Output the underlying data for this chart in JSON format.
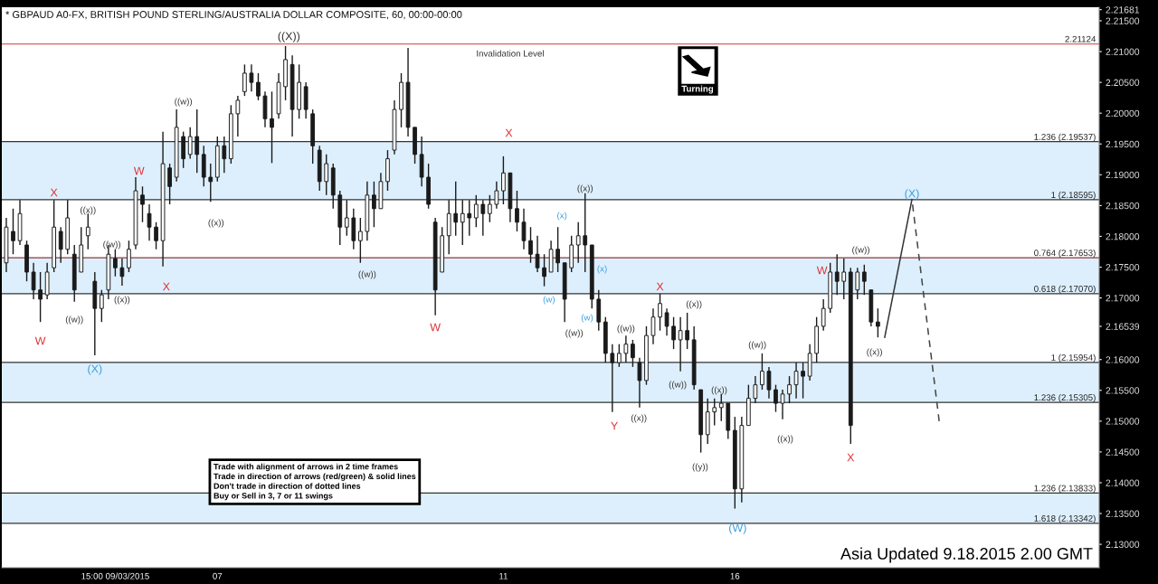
{
  "chart_data": {
    "type": "candlestick",
    "title": "* GBPAUD A0-FX, BRITISH POUND STERLING/AUSTRALIA DOLLAR COMPOSITE, 60, 00:00-00:00",
    "color": "#1a1a1a",
    "categories": [
      null,
      null,
      null,
      null,
      null,
      null,
      null,
      null,
      null,
      null,
      null,
      null,
      null,
      null,
      null,
      null,
      "15:00 09/03/2015",
      null,
      null,
      null,
      null,
      null,
      null,
      null,
      null,
      null,
      null,
      null,
      null,
      null,
      null,
      "07",
      null,
      null,
      null,
      null,
      null,
      null,
      null,
      null,
      null,
      null,
      null,
      null,
      null,
      null,
      null,
      null,
      null,
      null,
      null,
      null,
      null,
      null,
      null,
      null,
      null,
      null,
      null,
      null,
      null,
      null,
      null,
      null,
      null,
      null,
      null,
      null,
      null,
      null,
      null,
      null,
      null,
      "11",
      null,
      null,
      null,
      null,
      null,
      null,
      null,
      null,
      null,
      null,
      null,
      null,
      null,
      null,
      null,
      null,
      null,
      null,
      null,
      null,
      null,
      null,
      null,
      null,
      null,
      null,
      null,
      null,
      null,
      null,
      null,
      null,
      null,
      "16",
      null,
      null,
      null,
      null,
      null,
      null,
      null,
      null,
      null,
      null,
      null,
      null,
      null,
      null,
      null,
      null,
      null,
      null,
      null,
      null,
      null,
      null,
      null,
      null,
      null,
      null,
      null,
      null,
      null,
      null,
      null,
      null,
      null,
      null,
      null,
      null,
      null,
      null,
      null,
      null,
      null,
      null,
      null,
      null,
      null,
      null,
      null,
      null,
      null,
      null,
      null,
      null,
      null
    ],
    "ohlc": [
      [
        2.1757,
        2.183,
        2.1742,
        2.1815
      ],
      [
        2.1808,
        2.1845,
        2.1771,
        2.1793
      ],
      [
        2.1793,
        2.1859,
        2.1786,
        2.1837
      ],
      [
        2.1786,
        2.1793,
        2.1727,
        2.1742
      ],
      [
        2.1742,
        2.1757,
        2.1698,
        2.1713
      ],
      [
        2.1713,
        2.1742,
        2.1661,
        2.1698
      ],
      [
        2.1705,
        2.1757,
        2.1698,
        2.1742
      ],
      [
        2.1749,
        2.1859,
        2.1742,
        2.1815
      ],
      [
        2.1808,
        2.1815,
        2.1757,
        2.1779
      ],
      [
        2.1779,
        2.1859,
        2.1771,
        2.183
      ],
      [
        2.1771,
        2.1786,
        2.1694,
        2.1713
      ],
      [
        2.1742,
        2.1815,
        2.1742,
        2.1786
      ],
      [
        2.1801,
        2.1837,
        2.1779,
        2.1815
      ],
      [
        2.1727,
        2.1742,
        2.1607,
        2.1683
      ],
      [
        2.1683,
        2.1713,
        2.1661,
        2.1705
      ],
      [
        2.1713,
        2.1786,
        2.1698,
        2.1771
      ],
      [
        2.1764,
        2.1779,
        2.1735,
        2.1749
      ],
      [
        2.1749,
        2.1764,
        2.172,
        2.1735
      ],
      [
        2.1749,
        2.1793,
        2.1742,
        2.1779
      ],
      [
        2.1786,
        2.1896,
        2.1779,
        2.1874
      ],
      [
        2.1867,
        2.1881,
        2.1823,
        2.1852
      ],
      [
        2.1837,
        2.1852,
        2.1793,
        2.1815
      ],
      [
        2.1815,
        2.1823,
        2.1779,
        2.1793
      ],
      [
        2.1793,
        2.197,
        2.1751,
        2.1918
      ],
      [
        2.1911,
        2.1918,
        2.1852,
        2.1881
      ],
      [
        2.1896,
        2.2006,
        2.1889,
        2.1977
      ],
      [
        2.1962,
        2.197,
        2.1911,
        2.1926
      ],
      [
        2.1933,
        2.1977,
        2.1926,
        2.1962
      ],
      [
        2.1962,
        2.2006,
        2.1903,
        2.1933
      ],
      [
        2.1933,
        2.1947,
        2.1881,
        2.1896
      ],
      [
        2.1896,
        2.1918,
        2.1856,
        2.1889
      ],
      [
        2.1896,
        2.1962,
        2.1889,
        2.1947
      ],
      [
        2.1947,
        2.1962,
        2.1903,
        2.1926
      ],
      [
        2.1926,
        2.2013,
        2.1918,
        2.1999
      ],
      [
        2.1999,
        2.2028,
        2.1962,
        2.2021
      ],
      [
        2.2035,
        2.2079,
        2.2028,
        2.2065
      ],
      [
        2.2065,
        2.2079,
        2.2035,
        2.205
      ],
      [
        2.205,
        2.2065,
        2.2021,
        2.2028
      ],
      [
        2.2028,
        2.2035,
        2.1977,
        2.1991
      ],
      [
        2.1991,
        2.2035,
        2.1919,
        2.1977
      ],
      [
        2.1999,
        2.2065,
        2.1991,
        2.205
      ],
      [
        2.2043,
        2.2109,
        2.2021,
        2.2087
      ],
      [
        2.2079,
        2.2094,
        2.1962,
        2.2006
      ],
      [
        2.2006,
        2.2079,
        2.1991,
        2.205
      ],
      [
        2.2043,
        2.205,
        2.1991,
        2.2006
      ],
      [
        2.1999,
        2.2006,
        2.1918,
        2.1947
      ],
      [
        2.194,
        2.1947,
        2.1874,
        2.1889
      ],
      [
        2.1889,
        2.1933,
        2.1867,
        2.1918
      ],
      [
        2.1911,
        2.1918,
        2.1845,
        2.1867
      ],
      [
        2.1867,
        2.1874,
        2.1786,
        2.1815
      ],
      [
        2.1815,
        2.1859,
        2.1801,
        2.183
      ],
      [
        2.183,
        2.1845,
        2.1779,
        2.1793
      ],
      [
        2.1793,
        2.183,
        2.1757,
        2.1808
      ],
      [
        2.1808,
        2.1889,
        2.1793,
        2.1867
      ],
      [
        2.1867,
        2.1889,
        2.1815,
        2.1845
      ],
      [
        2.1845,
        2.1903,
        2.1845,
        2.1889
      ],
      [
        2.1889,
        2.194,
        2.1874,
        2.1926
      ],
      [
        2.194,
        2.2021,
        2.1933,
        2.2006
      ],
      [
        2.2006,
        2.2065,
        2.1977,
        2.205
      ],
      [
        2.205,
        2.2106,
        2.1962,
        2.1977
      ],
      [
        2.1977,
        2.1977,
        2.1918,
        2.1933
      ],
      [
        2.1933,
        2.1962,
        2.1881,
        2.1896
      ],
      [
        2.1896,
        2.1918,
        2.1845,
        2.1852
      ],
      [
        2.1823,
        2.183,
        2.1672,
        2.1713
      ],
      [
        2.1742,
        2.1815,
        2.1742,
        2.1801
      ],
      [
        2.1801,
        2.1859,
        2.1771,
        2.1837
      ],
      [
        2.1837,
        2.1889,
        2.1801,
        2.1823
      ],
      [
        2.1823,
        2.1859,
        2.1786,
        2.1837
      ],
      [
        2.1837,
        2.1859,
        2.1801,
        2.183
      ],
      [
        2.183,
        2.1867,
        2.1815,
        2.1852
      ],
      [
        2.1852,
        2.1859,
        2.1801,
        2.1837
      ],
      [
        2.1837,
        2.1867,
        2.1823,
        2.1852
      ],
      [
        2.1852,
        2.1889,
        2.1845,
        2.1874
      ],
      [
        2.1874,
        2.193,
        2.1852,
        2.1903
      ],
      [
        2.1903,
        2.1903,
        2.1823,
        2.1845
      ],
      [
        2.1845,
        2.1874,
        2.1808,
        2.1823
      ],
      [
        2.1823,
        2.1845,
        2.1779,
        2.1793
      ],
      [
        2.1793,
        2.1815,
        2.1757,
        2.1771
      ],
      [
        2.1771,
        2.1801,
        2.1742,
        2.1749
      ],
      [
        2.1749,
        2.1771,
        2.1719,
        2.1735
      ],
      [
        2.1742,
        2.1793,
        2.1742,
        2.1779
      ],
      [
        2.1779,
        2.1815,
        2.1742,
        2.1757
      ],
      [
        2.1757,
        2.1757,
        2.1661,
        2.1698
      ],
      [
        2.1749,
        2.1801,
        2.1742,
        2.1786
      ],
      [
        2.1786,
        2.1823,
        2.1757,
        2.1801
      ],
      [
        2.1801,
        2.187,
        2.1742,
        2.1786
      ],
      [
        2.1786,
        2.1786,
        2.1683,
        2.1698
      ],
      [
        2.1698,
        2.1713,
        2.1647,
        2.1661
      ],
      [
        2.1661,
        2.1669,
        2.1595,
        2.161
      ],
      [
        2.161,
        2.1625,
        2.1515,
        2.1595
      ],
      [
        2.1595,
        2.1625,
        2.1588,
        2.161
      ],
      [
        2.161,
        2.1639,
        2.1595,
        2.1625
      ],
      [
        2.1625,
        2.1632,
        2.1588,
        2.1603
      ],
      [
        2.1595,
        2.1603,
        2.1522,
        2.1566
      ],
      [
        2.1566,
        2.1654,
        2.1559,
        2.1639
      ],
      [
        2.1639,
        2.1683,
        2.1625,
        2.1669
      ],
      [
        2.1669,
        2.1707,
        2.1647,
        2.1691
      ],
      [
        2.1676,
        2.1683,
        2.1639,
        2.1654
      ],
      [
        2.1654,
        2.1669,
        2.1617,
        2.1632
      ],
      [
        2.1632,
        2.1669,
        2.1581,
        2.1647
      ],
      [
        2.1647,
        2.1676,
        2.1617,
        2.1632
      ],
      [
        2.1632,
        2.1654,
        2.1551,
        2.1559
      ],
      [
        2.1551,
        2.1551,
        2.1449,
        2.1478
      ],
      [
        2.1478,
        2.1537,
        2.1463,
        2.1515
      ],
      [
        2.1515,
        2.1537,
        2.1493,
        2.1522
      ],
      [
        2.1522,
        2.1544,
        2.15,
        2.1529
      ],
      [
        2.1529,
        2.1529,
        2.1471,
        2.1485
      ],
      [
        2.1485,
        2.1507,
        2.1358,
        2.139
      ],
      [
        2.139,
        2.1507,
        2.1368,
        2.1493
      ],
      [
        2.1493,
        2.1559,
        2.1493,
        2.1537
      ],
      [
        2.1537,
        2.1573,
        2.1529,
        2.1559
      ],
      [
        2.1559,
        2.161,
        2.1551,
        2.1581
      ],
      [
        2.1581,
        2.1588,
        2.1537,
        2.1551
      ],
      [
        2.1551,
        2.1559,
        2.1515,
        2.1529
      ],
      [
        2.1529,
        2.1551,
        2.1503,
        2.1544
      ],
      [
        2.1544,
        2.1573,
        2.1529,
        2.1559
      ],
      [
        2.1559,
        2.1595,
        2.1537,
        2.1581
      ],
      [
        2.1581,
        2.1595,
        2.1537,
        2.1573
      ],
      [
        2.1573,
        2.1625,
        2.1566,
        2.161
      ],
      [
        2.161,
        2.1669,
        2.1595,
        2.1654
      ],
      [
        2.1654,
        2.1698,
        2.1647,
        2.1683
      ],
      [
        2.1683,
        2.1757,
        2.1676,
        2.1742
      ],
      [
        2.1742,
        2.1771,
        2.1705,
        2.1727
      ],
      [
        2.1727,
        2.1764,
        2.1698,
        2.1742
      ],
      [
        2.1742,
        2.1749,
        2.1463,
        2.1493
      ],
      [
        2.1713,
        2.1749,
        2.1698,
        2.1742
      ],
      [
        2.1742,
        2.1754,
        2.1705,
        2.1727
      ],
      [
        2.1713,
        2.1713,
        2.1654,
        2.1661
      ],
      [
        2.1661,
        2.1683,
        2.1636,
        2.1654
      ],
      null,
      null,
      null,
      null,
      null,
      null,
      null,
      null,
      null,
      null,
      null,
      null,
      null,
      null,
      null,
      null,
      null,
      null,
      null,
      null,
      null,
      null,
      null,
      null,
      null,
      null,
      null,
      null,
      null,
      null,
      null,
      null
    ],
    "series": [
      {
        "type": "line",
        "color": "#333333",
        "line_style": "solid",
        "values": [
          null,
          null,
          null,
          null,
          null,
          null,
          null,
          null,
          null,
          null,
          null,
          null,
          null,
          null,
          null,
          null,
          null,
          null,
          null,
          null,
          null,
          null,
          null,
          null,
          null,
          null,
          null,
          null,
          null,
          null,
          null,
          null,
          null,
          null,
          null,
          null,
          null,
          null,
          null,
          null,
          null,
          null,
          null,
          null,
          null,
          null,
          null,
          null,
          null,
          null,
          null,
          null,
          null,
          null,
          null,
          null,
          null,
          null,
          null,
          null,
          null,
          null,
          null,
          null,
          null,
          null,
          null,
          null,
          null,
          null,
          null,
          null,
          null,
          null,
          null,
          null,
          null,
          null,
          null,
          null,
          null,
          null,
          null,
          null,
          null,
          null,
          null,
          null,
          null,
          null,
          null,
          null,
          null,
          null,
          null,
          null,
          null,
          null,
          null,
          null,
          null,
          null,
          null,
          null,
          null,
          null,
          null,
          null,
          null,
          null,
          null,
          null,
          null,
          null,
          null,
          null,
          null,
          null,
          null,
          null,
          null,
          null,
          null,
          null,
          null,
          null,
          null,
          null,
          null,
          2.1636,
          null,
          null,
          null,
          2.186,
          null,
          null,
          null,
          null,
          null,
          null,
          null,
          null,
          null,
          null,
          null,
          null,
          null,
          null,
          null,
          null,
          null,
          null,
          null,
          null,
          null,
          null,
          null,
          null,
          null,
          null,
          null
        ]
      },
      {
        "type": "line",
        "color": "#444444",
        "line_style": "dashed",
        "values": [
          null,
          null,
          null,
          null,
          null,
          null,
          null,
          null,
          null,
          null,
          null,
          null,
          null,
          null,
          null,
          null,
          null,
          null,
          null,
          null,
          null,
          null,
          null,
          null,
          null,
          null,
          null,
          null,
          null,
          null,
          null,
          null,
          null,
          null,
          null,
          null,
          null,
          null,
          null,
          null,
          null,
          null,
          null,
          null,
          null,
          null,
          null,
          null,
          null,
          null,
          null,
          null,
          null,
          null,
          null,
          null,
          null,
          null,
          null,
          null,
          null,
          null,
          null,
          null,
          null,
          null,
          null,
          null,
          null,
          null,
          null,
          null,
          null,
          null,
          null,
          null,
          null,
          null,
          null,
          null,
          null,
          null,
          null,
          null,
          null,
          null,
          null,
          null,
          null,
          null,
          null,
          null,
          null,
          null,
          null,
          null,
          null,
          null,
          null,
          null,
          null,
          null,
          null,
          null,
          null,
          null,
          null,
          null,
          null,
          null,
          null,
          null,
          null,
          null,
          null,
          null,
          null,
          null,
          null,
          null,
          null,
          null,
          null,
          null,
          null,
          null,
          null,
          null,
          null,
          null,
          null,
          null,
          null,
          2.186,
          null,
          null,
          null,
          2.15,
          null,
          null,
          null,
          null,
          null,
          null,
          null,
          null,
          null,
          null,
          null,
          null,
          null,
          null,
          null,
          null,
          null,
          null,
          null,
          null,
          null,
          null,
          null
        ]
      }
    ],
    "ylim": [
      2.1262,
      2.2172
    ],
    "yticks": [
      {
        "value": 2.13,
        "label": "2.13000"
      },
      {
        "value": 2.135,
        "label": "2.13500"
      },
      {
        "value": 2.14,
        "label": "2.14000"
      },
      {
        "value": 2.145,
        "label": "2.14500"
      },
      {
        "value": 2.15,
        "label": "2.15000"
      },
      {
        "value": 2.155,
        "label": "2.15500"
      },
      {
        "value": 2.16,
        "label": "2.16000"
      },
      {
        "value": 2.16539,
        "label": "2.16539"
      },
      {
        "value": 2.17,
        "label": "2.17000"
      },
      {
        "value": 2.175,
        "label": "2.17500"
      },
      {
        "value": 2.18,
        "label": "2.18000"
      },
      {
        "value": 2.185,
        "label": "2.18500"
      },
      {
        "value": 2.19,
        "label": "2.19000"
      },
      {
        "value": 2.195,
        "label": "2.19500"
      },
      {
        "value": 2.2,
        "label": "2.20000"
      },
      {
        "value": 2.205,
        "label": "2.20500"
      },
      {
        "value": 2.21,
        "label": "2.21000"
      },
      {
        "value": 2.215,
        "label": "2.21500"
      },
      {
        "value": 2.21681,
        "label": "2.21681"
      }
    ],
    "ref_lines": [
      {
        "axis": "y",
        "value": 2.21124,
        "label": "2.21124",
        "color": "#e06060"
      },
      {
        "axis": "y",
        "value": 2.19537,
        "label": "1.236 (2.19537)",
        "color": "#333333"
      },
      {
        "axis": "y",
        "value": 2.18595,
        "label": "1 (2.18595)",
        "color": "#333333"
      },
      {
        "axis": "y",
        "value": 2.17653,
        "label": "0.764 (2.17653)",
        "color": "#8b3a3a"
      },
      {
        "axis": "y",
        "value": 2.1707,
        "label": "0.618 (2.17070)",
        "color": "#333333"
      },
      {
        "axis": "y",
        "value": 2.15954,
        "label": "1 (2.15954)",
        "color": "#333333"
      },
      {
        "axis": "y",
        "value": 2.15305,
        "label": "1.236 (2.15305)",
        "color": "#333333"
      },
      {
        "axis": "y",
        "value": 2.13833,
        "label": "1.236 (2.13833)",
        "color": "#333333"
      },
      {
        "axis": "y",
        "value": 2.13342,
        "label": "1.618 (2.13342)",
        "color": "#333333"
      }
    ],
    "bands": [
      {
        "axis": "y",
        "from": 2.18595,
        "to": 2.19537,
        "color": "#b3dcfb"
      },
      {
        "axis": "y",
        "from": 2.1707,
        "to": 2.17653,
        "color": "#b3dcfb"
      },
      {
        "axis": "y",
        "from": 2.15305,
        "to": 2.15954,
        "color": "#b3dcfb"
      },
      {
        "axis": "y",
        "from": 2.13342,
        "to": 2.13833,
        "color": "#b3dcfb"
      }
    ],
    "annotations": [
      "Invalidation Level",
      "X",
      "W",
      "((x))",
      "((w))",
      "((w))",
      "(X)",
      "((x))",
      "W",
      "X",
      "((w))",
      "((x))",
      "((X))",
      "((w))",
      "W",
      "X",
      "(x)",
      "(w)",
      "((x))",
      "(x)",
      "(w)",
      "((w))",
      "X",
      "((x))",
      "((w))",
      "Y",
      "((x))",
      "((w))",
      "((x))",
      "((y))",
      "((w))",
      "((x))",
      "(W)",
      "W",
      "((w))",
      "X",
      "((x))",
      "(X)",
      "Trade with alignment of arrows in 2 time frames\nTrade in direction of arrows (red/green) & solid lines\nDon't trade in direction of dotted lines\nBuy or Sell in 3, 7 or 11 swings",
      "Turning",
      "Asia Updated 9.18.2015 2.00 GMT"
    ]
  }
}
